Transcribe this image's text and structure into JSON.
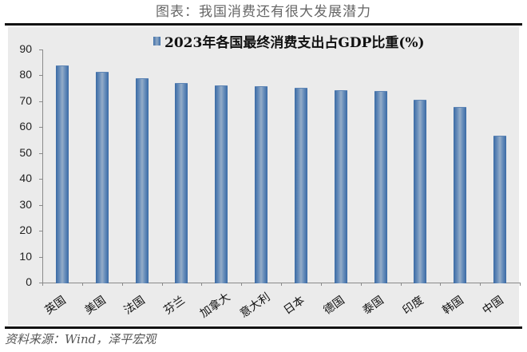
{
  "figure": {
    "title": "图表：我国消费还有很大发展潜力",
    "source": "资料来源：Wind，泽平宏观"
  },
  "chart_data": {
    "type": "bar",
    "title": "",
    "legend": [
      "2023年各国最终消费支出占GDP比重(%)"
    ],
    "legend_position": "top",
    "categories": [
      "英国",
      "美国",
      "法国",
      "芬兰",
      "加拿大",
      "意大利",
      "日本",
      "德国",
      "泰国",
      "印度",
      "韩国",
      "中国"
    ],
    "series": [
      {
        "name": "2023年各国最终消费支出占GDP比重(%)",
        "values": [
          83.8,
          81.4,
          78.8,
          77.1,
          76.1,
          75.7,
          75.1,
          74.4,
          74.0,
          70.6,
          67.8,
          56.7
        ],
        "color": "#4a76ad"
      }
    ],
    "xlabel": "",
    "ylabel": "",
    "ylim": [
      0,
      90
    ],
    "yticks": [
      "0",
      "10",
      "20",
      "30",
      "40",
      "50",
      "60",
      "70",
      "80",
      "90"
    ],
    "grid": false
  }
}
